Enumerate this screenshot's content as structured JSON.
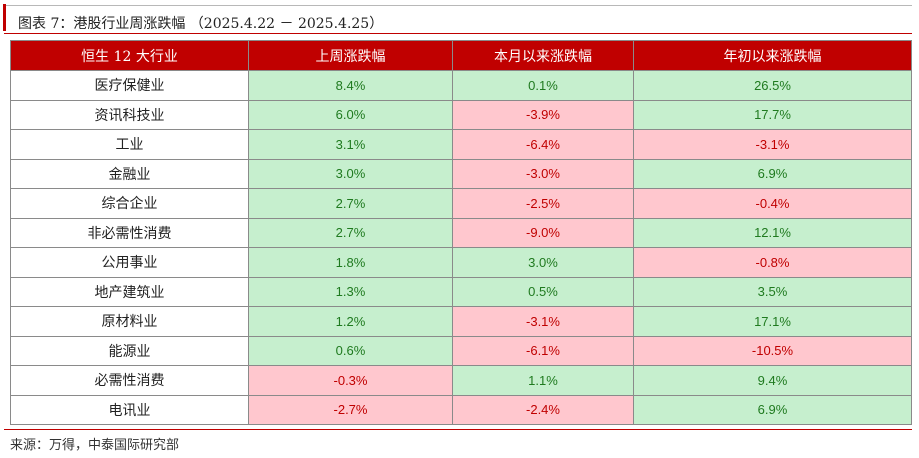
{
  "title": "图表 7：港股行业周涨跌幅 （2025.4.22 － 2025.4.25）",
  "headers": [
    "恒生 12 大行业",
    "上周涨跌幅",
    "本月以来涨跌幅",
    "年初以来涨跌幅"
  ],
  "rows": [
    {
      "industry": "医疗保健业",
      "week": "8.4%",
      "month": "0.1%",
      "ytd": "26.5%"
    },
    {
      "industry": "资讯科技业",
      "week": "6.0%",
      "month": "-3.9%",
      "ytd": "17.7%"
    },
    {
      "industry": "工业",
      "week": "3.1%",
      "month": "-6.4%",
      "ytd": "-3.1%"
    },
    {
      "industry": "金融业",
      "week": "3.0%",
      "month": "-3.0%",
      "ytd": "6.9%"
    },
    {
      "industry": "综合企业",
      "week": "2.7%",
      "month": "-2.5%",
      "ytd": "-0.4%"
    },
    {
      "industry": "非必需性消费",
      "week": "2.7%",
      "month": "-9.0%",
      "ytd": "12.1%"
    },
    {
      "industry": "公用事业",
      "week": "1.8%",
      "month": "3.0%",
      "ytd": "-0.8%"
    },
    {
      "industry": "地产建筑业",
      "week": "1.3%",
      "month": "0.5%",
      "ytd": "3.5%"
    },
    {
      "industry": "原材料业",
      "week": "1.2%",
      "month": "-3.1%",
      "ytd": "17.1%"
    },
    {
      "industry": "能源业",
      "week": "0.6%",
      "month": "-6.1%",
      "ytd": "-10.5%"
    },
    {
      "industry": "必需性消费",
      "week": "-0.3%",
      "month": "1.1%",
      "ytd": "9.4%"
    },
    {
      "industry": "电讯业",
      "week": "-2.7%",
      "month": "-2.4%",
      "ytd": "6.9%"
    }
  ],
  "source": "来源：万得，中泰国际研究部",
  "colors": {
    "header_bg": "#c00000",
    "positive_bg": "#c6efce",
    "positive_text": "#1f7a1f",
    "negative_bg": "#ffc7ce",
    "negative_text": "#c00000"
  }
}
